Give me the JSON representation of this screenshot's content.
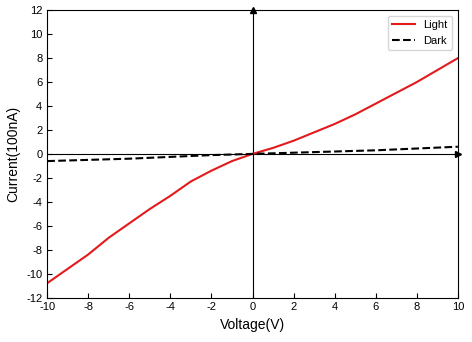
{
  "chart_data": {
    "type": "line",
    "x_label": "Voltage(V)",
    "y_label": "Current(100nA)",
    "xlim": [
      -10,
      10
    ],
    "xticks": [
      -10,
      -8,
      -6,
      -4,
      -2,
      0,
      2,
      4,
      6,
      8,
      10
    ],
    "ylim": [
      -12,
      12
    ],
    "yticks": [
      -12,
      -10,
      -8,
      -6,
      -4,
      -2,
      0,
      2,
      4,
      6,
      8,
      10,
      12
    ],
    "legend": "upper right",
    "grid": false,
    "series": [
      {
        "name": "Light",
        "color": "#e31a1c",
        "line_style": "solid",
        "x": [
          -10,
          -9,
          -8,
          -7,
          -6,
          -5,
          -4,
          -3,
          -2,
          -1,
          0,
          1,
          2,
          3,
          4,
          5,
          6,
          7,
          8,
          9,
          10
        ],
        "values": [
          -10.8,
          -9.6,
          -8.4,
          -7.0,
          -5.8,
          -4.6,
          -3.5,
          -2.3,
          -1.4,
          -0.6,
          0,
          0.5,
          1.1,
          1.8,
          2.5,
          3.3,
          4.2,
          5.1,
          6.0,
          7.0,
          8.0
        ]
      },
      {
        "name": "Dark",
        "color": "#000000",
        "line_style": "dashed",
        "x": [
          -10,
          -8,
          -6,
          -4,
          -2,
          0,
          2,
          4,
          6,
          8,
          10
        ],
        "values": [
          -0.6,
          -0.5,
          -0.4,
          -0.25,
          -0.1,
          0,
          0.1,
          0.2,
          0.3,
          0.45,
          0.6
        ]
      }
    ]
  }
}
